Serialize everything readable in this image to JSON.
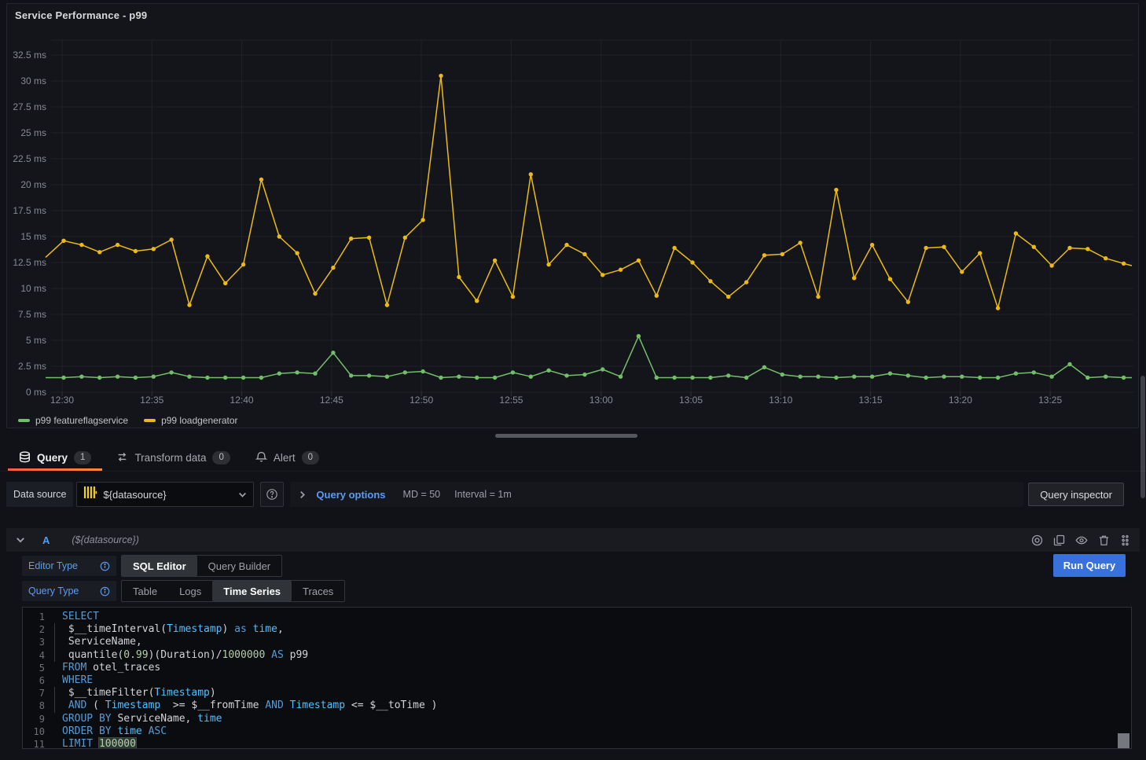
{
  "panel": {
    "title": "Service Performance - p99"
  },
  "chart_data": {
    "type": "line",
    "title": "Service Performance - p99",
    "unit": "ms",
    "grid": true,
    "legend_position": "bottom",
    "ylim": [
      0,
      34
    ],
    "y_ticks": [
      "0 ms",
      "2.5 ms",
      "5 ms",
      "7.5 ms",
      "10 ms",
      "12.5 ms",
      "15 ms",
      "17.5 ms",
      "20 ms",
      "22.5 ms",
      "25 ms",
      "27.5 ms",
      "30 ms",
      "32.5 ms"
    ],
    "x_ticks": [
      "12:30",
      "12:35",
      "12:40",
      "12:45",
      "12:50",
      "12:55",
      "13:00",
      "13:05",
      "13:10",
      "13:15",
      "13:20",
      "13:25"
    ],
    "x": [
      "12:30",
      "12:31",
      "12:32",
      "12:33",
      "12:34",
      "12:35",
      "12:36",
      "12:37",
      "12:38",
      "12:39",
      "12:40",
      "12:41",
      "12:42",
      "12:43",
      "12:44",
      "12:45",
      "12:46",
      "12:47",
      "12:48",
      "12:49",
      "12:50",
      "12:51",
      "12:52",
      "12:53",
      "12:54",
      "12:55",
      "12:56",
      "12:57",
      "12:58",
      "12:59",
      "13:00",
      "13:01",
      "13:02",
      "13:03",
      "13:04",
      "13:05",
      "13:06",
      "13:07",
      "13:08",
      "13:09",
      "13:10",
      "13:11",
      "13:12",
      "13:13",
      "13:14",
      "13:15",
      "13:16",
      "13:17",
      "13:18",
      "13:19",
      "13:20",
      "13:21",
      "13:22",
      "13:23",
      "13:24",
      "13:25",
      "13:26",
      "13:27",
      "13:28",
      "13:29"
    ],
    "series": [
      {
        "name": "p99 featureflagservice",
        "color": "#73BF69",
        "lead_in": 1.4,
        "lead_out": 1.4,
        "values": [
          1.4,
          1.5,
          1.4,
          1.5,
          1.4,
          1.5,
          1.9,
          1.5,
          1.4,
          1.4,
          1.4,
          1.4,
          1.8,
          1.9,
          1.8,
          3.8,
          1.6,
          1.6,
          1.5,
          1.9,
          2.0,
          1.4,
          1.5,
          1.4,
          1.4,
          1.9,
          1.5,
          2.1,
          1.6,
          1.7,
          2.2,
          1.5,
          5.4,
          1.4,
          1.4,
          1.4,
          1.4,
          1.6,
          1.4,
          2.4,
          1.7,
          1.5,
          1.5,
          1.4,
          1.5,
          1.5,
          1.8,
          1.6,
          1.4,
          1.5,
          1.5,
          1.4,
          1.4,
          1.8,
          1.9,
          1.5,
          2.7,
          1.4,
          1.5,
          1.4
        ]
      },
      {
        "name": "p99 loadgenerator",
        "color": "#ECBB13",
        "lead_in": 13.0,
        "lead_out": 12.2,
        "values": [
          14.6,
          14.2,
          13.5,
          14.2,
          13.6,
          13.8,
          14.7,
          8.4,
          13.1,
          10.5,
          12.3,
          20.5,
          15.0,
          13.4,
          9.5,
          12.0,
          14.8,
          14.9,
          8.4,
          14.9,
          16.6,
          30.5,
          11.1,
          8.8,
          12.7,
          9.2,
          21.0,
          12.3,
          14.2,
          13.3,
          11.3,
          11.8,
          12.7,
          9.3,
          13.9,
          12.5,
          10.7,
          9.2,
          10.6,
          13.2,
          13.3,
          14.4,
          9.2,
          19.5,
          11.0,
          14.2,
          10.9,
          8.7,
          13.9,
          14.0,
          11.6,
          13.4,
          8.1,
          15.3,
          14.0,
          12.2,
          13.9,
          13.8,
          12.9,
          12.4
        ]
      }
    ]
  },
  "tabs": [
    {
      "label": "Query",
      "count": "1",
      "icon": "database-icon",
      "active": true
    },
    {
      "label": "Transform data",
      "count": "0",
      "icon": "transform-icon",
      "active": false
    },
    {
      "label": "Alert",
      "count": "0",
      "icon": "bell-icon",
      "active": false
    }
  ],
  "datasource_row": {
    "label": "Data source",
    "value": "${datasource}",
    "query_options_label": "Query options",
    "max_data_points": "MD = 50",
    "interval": "Interval = 1m",
    "inspector_button": "Query inspector"
  },
  "query_row": {
    "ref_id": "A",
    "datasource_note": "(${datasource})"
  },
  "editor": {
    "editor_type_label": "Editor Type",
    "editor_types": [
      "SQL Editor",
      "Query Builder"
    ],
    "active_editor_type": "SQL Editor",
    "query_type_label": "Query Type",
    "query_types": [
      "Table",
      "Logs",
      "Time Series",
      "Traces"
    ],
    "active_query_type": "Time Series",
    "run_button": "Run Query"
  },
  "sql": {
    "lines": [
      {
        "n": "1",
        "ind": false,
        "tokens": [
          [
            "SELECT",
            "kw"
          ]
        ]
      },
      {
        "n": "2",
        "ind": true,
        "tokens": [
          [
            " $__timeInterval(",
            "pln"
          ],
          [
            "Timestamp",
            "fld"
          ],
          [
            ") ",
            "pln"
          ],
          [
            "as",
            "kw"
          ],
          [
            " ",
            "pln"
          ],
          [
            "time",
            "fld"
          ],
          [
            ",",
            "pln"
          ]
        ]
      },
      {
        "n": "3",
        "ind": true,
        "tokens": [
          [
            " ServiceName,",
            "pln"
          ]
        ]
      },
      {
        "n": "4",
        "ind": true,
        "tokens": [
          [
            " quantile(",
            "pln"
          ],
          [
            "0.99",
            "num"
          ],
          [
            ")(Duration)/",
            "pln"
          ],
          [
            "1000000",
            "num"
          ],
          [
            " ",
            "pln"
          ],
          [
            "AS",
            "kw"
          ],
          [
            " p99",
            "pln"
          ]
        ]
      },
      {
        "n": "5",
        "ind": false,
        "tokens": [
          [
            "FROM",
            "kw"
          ],
          [
            " otel_traces",
            "pln"
          ]
        ]
      },
      {
        "n": "6",
        "ind": false,
        "tokens": [
          [
            "WHERE",
            "kw"
          ]
        ]
      },
      {
        "n": "7",
        "ind": true,
        "tokens": [
          [
            " $__timeFilter(",
            "pln"
          ],
          [
            "Timestamp",
            "fld"
          ],
          [
            ")",
            "pln"
          ]
        ]
      },
      {
        "n": "8",
        "ind": true,
        "tokens": [
          [
            " ",
            "pln"
          ],
          [
            "AND",
            "kw"
          ],
          [
            " ( ",
            "pln"
          ],
          [
            "Timestamp",
            "fld"
          ],
          [
            "  >= $__fromTime ",
            "pln"
          ],
          [
            "AND",
            "kw"
          ],
          [
            " ",
            "pln"
          ],
          [
            "Timestamp",
            "fld"
          ],
          [
            " <= $__toTime )",
            "pln"
          ]
        ]
      },
      {
        "n": "9",
        "ind": false,
        "tokens": [
          [
            "GROUP BY",
            "kw"
          ],
          [
            " ServiceName, ",
            "pln"
          ],
          [
            "time",
            "fld"
          ]
        ]
      },
      {
        "n": "10",
        "ind": false,
        "tokens": [
          [
            "ORDER BY",
            "kw"
          ],
          [
            " ",
            "pln"
          ],
          [
            "time",
            "fld"
          ],
          [
            " ",
            "pln"
          ],
          [
            "ASC",
            "kw"
          ]
        ]
      },
      {
        "n": "11",
        "ind": false,
        "tokens": [
          [
            "LIMIT",
            "kw"
          ],
          [
            " ",
            "pln"
          ],
          [
            "100000",
            "numsel"
          ]
        ]
      }
    ]
  },
  "colors": {
    "accent_orange": "#FF8833",
    "primary_button_blue": "#3871DC",
    "link_blue": "#5B9BF5",
    "series_green": "#73BF69",
    "series_yellow": "#ECBB13",
    "clickhouse_yellow": "#FAD502"
  }
}
